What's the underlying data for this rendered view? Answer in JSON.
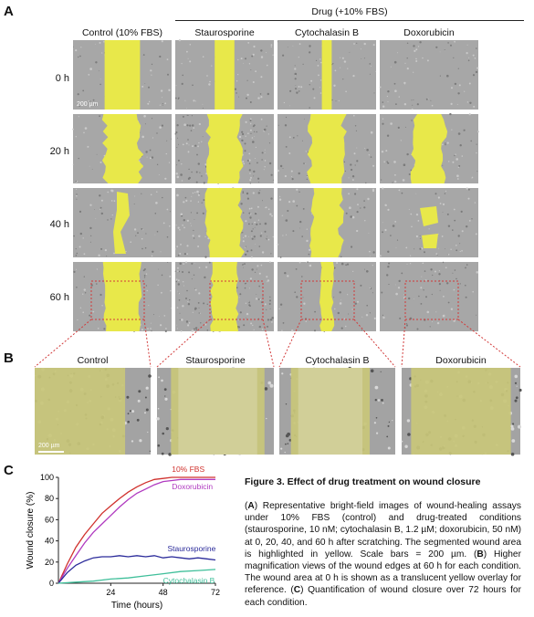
{
  "panel_labels": {
    "a": "A",
    "b": "B",
    "c": "C"
  },
  "panelA": {
    "drug_header": "Drug (+10% FBS)",
    "columns": [
      "Control (10% FBS)",
      "Staurosporine",
      "Cytochalasin B",
      "Doxorubicin"
    ],
    "rows": [
      "0 h",
      "20 h",
      "40 h",
      "60 h"
    ],
    "scale_bar": "200 µm"
  },
  "panelB": {
    "columns": [
      "Control",
      "Staurosporine",
      "Cytochalasin B",
      "Doxorubicin"
    ],
    "scale_bar": "200 µm"
  },
  "colors": {
    "wound": "#e8e84a",
    "box": "#d23a3a",
    "fbs": "#d0312d",
    "doxo": "#b03ac0",
    "stauro": "#2a2a9a",
    "cyto": "#3fbf9a"
  },
  "chart_data": {
    "type": "line",
    "xlabel": "Time (hours)",
    "ylabel": "Wound closure (%)",
    "xlim": [
      0,
      72
    ],
    "ylim": [
      0,
      100
    ],
    "xticks": [
      24,
      48,
      72
    ],
    "yticks": [
      0,
      20,
      40,
      60,
      80,
      100
    ],
    "series": [
      {
        "name": "10% FBS",
        "color": "#d0312d",
        "x": [
          0,
          4,
          8,
          12,
          16,
          20,
          24,
          28,
          32,
          36,
          40,
          44,
          48,
          52,
          56,
          60,
          64,
          68,
          72
        ],
        "y": [
          0,
          18,
          34,
          46,
          56,
          66,
          73,
          80,
          86,
          91,
          95,
          98,
          99,
          100,
          100,
          100,
          100,
          100,
          100
        ]
      },
      {
        "name": "Doxorubicin",
        "color": "#b03ac0",
        "x": [
          0,
          4,
          8,
          12,
          16,
          20,
          24,
          28,
          32,
          36,
          40,
          44,
          48,
          52,
          56,
          60,
          64,
          68,
          72
        ],
        "y": [
          0,
          14,
          26,
          38,
          48,
          56,
          64,
          72,
          79,
          85,
          89,
          93,
          96,
          97,
          98,
          98,
          98,
          98,
          98
        ]
      },
      {
        "name": "Staurosporine",
        "color": "#2a2a9a",
        "x": [
          0,
          4,
          8,
          12,
          16,
          20,
          24,
          28,
          32,
          36,
          40,
          44,
          48,
          52,
          56,
          60,
          64,
          68,
          72
        ],
        "y": [
          0,
          10,
          17,
          21,
          24,
          25,
          25,
          26,
          25,
          26,
          25,
          26,
          24,
          25,
          24,
          23,
          24,
          23,
          22
        ]
      },
      {
        "name": "Cytochalasin B",
        "color": "#3fbf9a",
        "x": [
          0,
          8,
          16,
          24,
          32,
          40,
          48,
          56,
          64,
          72
        ],
        "y": [
          0,
          1,
          2,
          4,
          5,
          7,
          9,
          11,
          12,
          13
        ]
      }
    ]
  },
  "caption": {
    "title": "Figure 3. Effect of drug treatment on wound closure",
    "a_label": "A",
    "a_text": ") Representative bright-field images of wound-healing assays under 10% FBS (control) and drug-treated conditions (staurosporine, 10 nM; cytochalasin B, 1.2 µM; doxorubicin, 50 nM) at 0, 20, 40, and 60 h after scratching. The segmented wound area is highlighted in yellow. Scale bars = 200 µm. (",
    "b_label": "B",
    "b_text": ") Higher magnification views of the wound edges at 60 h for each condition.  The wound area at 0 h is shown as a translucent yellow overlay for reference. (",
    "c_label": "C",
    "c_text": ") Quantification of wound closure over 72 hours for each condition."
  }
}
